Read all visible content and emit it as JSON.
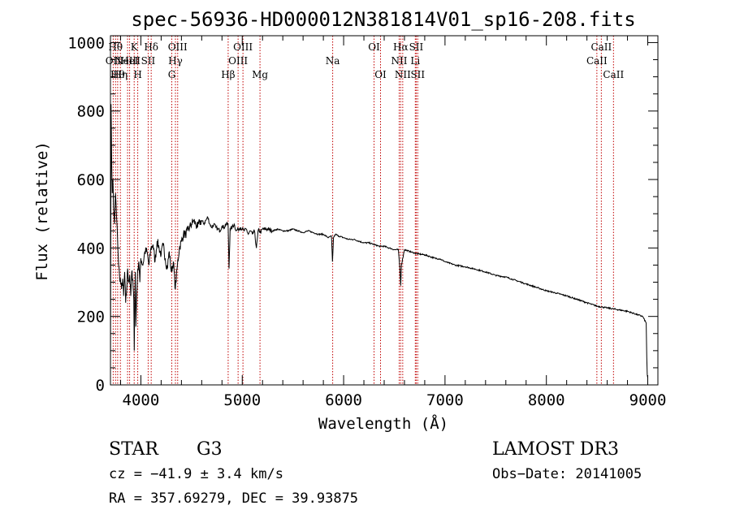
{
  "chart_data": {
    "type": "line",
    "title": "spec-56936-HD000012N381814V01_sp16-208.fits",
    "xlabel": "Wavelength (Å)",
    "ylabel": "Flux (relative)",
    "xlim": [
      3700,
      9100
    ],
    "ylim": [
      0,
      1020
    ],
    "xticks": [
      4000,
      5000,
      6000,
      7000,
      8000,
      9000
    ],
    "yticks": [
      0,
      200,
      400,
      600,
      800,
      1000
    ],
    "xtick_labels": [
      "4000",
      "5000",
      "6000",
      "7000",
      "8000",
      "9000"
    ],
    "ytick_labels": [
      "0",
      "200",
      "400",
      "600",
      "800",
      "1000"
    ],
    "series": [
      {
        "name": "flux",
        "x": [
          3700,
          3706,
          3712,
          3718,
          3724,
          3730,
          3740,
          3750,
          3760,
          3770,
          3780,
          3790,
          3800,
          3810,
          3820,
          3830,
          3840,
          3850,
          3860,
          3870,
          3880,
          3890,
          3900,
          3910,
          3920,
          3930,
          3935,
          3940,
          3945,
          3950,
          3960,
          3970,
          3980,
          3990,
          4000,
          4020,
          4040,
          4060,
          4080,
          4100,
          4120,
          4140,
          4160,
          4180,
          4200,
          4220,
          4240,
          4260,
          4280,
          4300,
          4320,
          4340,
          4360,
          4380,
          4400,
          4420,
          4440,
          4460,
          4480,
          4500,
          4520,
          4540,
          4560,
          4580,
          4600,
          4620,
          4640,
          4660,
          4680,
          4700,
          4720,
          4740,
          4760,
          4780,
          4800,
          4820,
          4840,
          4860,
          4870,
          4880,
          4900,
          4920,
          4940,
          4960,
          4980,
          5000,
          5020,
          5040,
          5060,
          5080,
          5100,
          5120,
          5140,
          5160,
          5180,
          5200,
          5250,
          5300,
          5350,
          5400,
          5450,
          5500,
          5550,
          5600,
          5650,
          5700,
          5750,
          5800,
          5850,
          5880,
          5890,
          5900,
          5920,
          5950,
          6000,
          6050,
          6100,
          6150,
          6200,
          6250,
          6300,
          6350,
          6400,
          6450,
          6500,
          6540,
          6555,
          6563,
          6570,
          6600,
          6650,
          6700,
          6750,
          6800,
          6850,
          6900,
          6950,
          7000,
          7100,
          7200,
          7300,
          7400,
          7500,
          7600,
          7700,
          7800,
          7900,
          8000,
          8100,
          8200,
          8300,
          8400,
          8500,
          8600,
          8700,
          8800,
          8900,
          8950,
          8985,
          8990,
          8995,
          9000
        ],
        "values": [
          30,
          820,
          650,
          560,
          600,
          520,
          470,
          560,
          490,
          430,
          350,
          320,
          300,
          280,
          310,
          260,
          330,
          240,
          280,
          340,
          300,
          320,
          260,
          330,
          310,
          250,
          100,
          260,
          330,
          170,
          270,
          340,
          360,
          300,
          370,
          350,
          390,
          390,
          350,
          400,
          410,
          360,
          420,
          400,
          380,
          410,
          370,
          340,
          390,
          330,
          360,
          280,
          350,
          400,
          420,
          440,
          440,
          450,
          460,
          470,
          480,
          470,
          460,
          475,
          480,
          470,
          480,
          490,
          470,
          460,
          470,
          460,
          455,
          450,
          465,
          460,
          470,
          470,
          340,
          455,
          460,
          470,
          450,
          455,
          460,
          455,
          450,
          455,
          440,
          450,
          440,
          450,
          400,
          455,
          445,
          455,
          455,
          450,
          455,
          450,
          450,
          455,
          450,
          445,
          450,
          445,
          440,
          440,
          430,
          435,
          360,
          430,
          440,
          435,
          430,
          425,
          425,
          420,
          415,
          415,
          410,
          405,
          405,
          400,
          395,
          395,
          340,
          290,
          350,
          395,
          390,
          385,
          382,
          380,
          375,
          370,
          368,
          360,
          350,
          345,
          338,
          330,
          320,
          315,
          305,
          295,
          285,
          275,
          268,
          260,
          250,
          240,
          230,
          225,
          220,
          215,
          205,
          200,
          180,
          80,
          30,
          20
        ]
      }
    ],
    "line_markers": [
      {
        "wavelength": 3727,
        "label": "OII",
        "row": 2
      },
      {
        "wavelength": 3750,
        "label": "Hθ",
        "row": 1
      },
      {
        "wavelength": 3771,
        "label": "Hθ",
        "row": 3
      },
      {
        "wavelength": 3798,
        "label": "Hη",
        "row": 3
      },
      {
        "wavelength": 3869,
        "label": "NeIII",
        "row": 2
      },
      {
        "wavelength": 3889,
        "label": "HeI",
        "row": 2
      },
      {
        "wavelength": 3934,
        "label": "K",
        "row": 1
      },
      {
        "wavelength": 3969,
        "label": "H",
        "row": 3
      },
      {
        "wavelength": 4072,
        "label": "SII",
        "row": 2
      },
      {
        "wavelength": 4102,
        "label": "Hδ",
        "row": 1
      },
      {
        "wavelength": 4305,
        "label": "G",
        "row": 3
      },
      {
        "wavelength": 4341,
        "label": "Hγ",
        "row": 2
      },
      {
        "wavelength": 4363,
        "label": "OIII",
        "row": 1
      },
      {
        "wavelength": 4861,
        "label": "Hβ",
        "row": 3
      },
      {
        "wavelength": 4959,
        "label": "OIII",
        "row": 2
      },
      {
        "wavelength": 5007,
        "label": "OIII",
        "row": 1
      },
      {
        "wavelength": 5175,
        "label": "Mg",
        "row": 3
      },
      {
        "wavelength": 5892,
        "label": "Na",
        "row": 2
      },
      {
        "wavelength": 6300,
        "label": "OI",
        "row": 1
      },
      {
        "wavelength": 6364,
        "label": "OI",
        "row": 3
      },
      {
        "wavelength": 6548,
        "label": "NII",
        "row": 2
      },
      {
        "wavelength": 6563,
        "label": "Hα",
        "row": 1
      },
      {
        "wavelength": 6583,
        "label": "NII",
        "row": 3
      },
      {
        "wavelength": 6707,
        "label": "Li",
        "row": 2
      },
      {
        "wavelength": 6716,
        "label": "SII",
        "row": 1
      },
      {
        "wavelength": 6731,
        "label": "SII",
        "row": 3
      },
      {
        "wavelength": 8498,
        "label": "CaII",
        "row": 2
      },
      {
        "wavelength": 8542,
        "label": "CaII",
        "row": 1
      },
      {
        "wavelength": 8662,
        "label": "CaII",
        "row": 3
      }
    ],
    "colors": {
      "spectrum": "#000000",
      "markers": "#c00000",
      "axes": "#000000"
    }
  },
  "info": {
    "object_class": "STAR",
    "subclass": "G3",
    "survey": "LAMOST DR3",
    "redshift": "cz = −41.9 ± 3.4 km/s",
    "obs_date": "Obs−Date: 20141005",
    "coords": "RA = 357.69279, DEC =  39.93875"
  }
}
